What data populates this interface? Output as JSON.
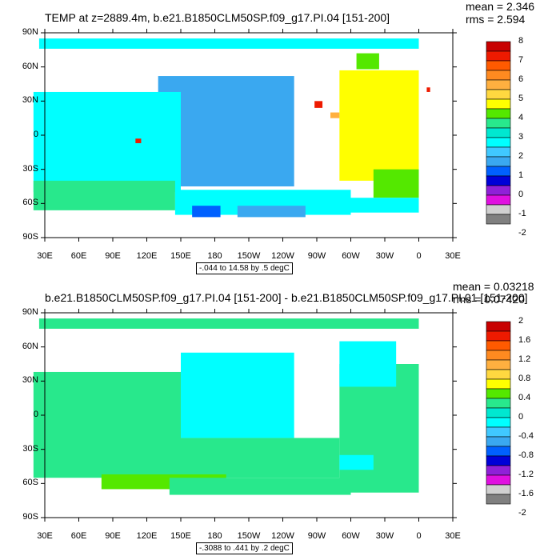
{
  "lat_labels": [
    "90N",
    "60N",
    "30N",
    "0",
    "30S",
    "60S",
    "90S"
  ],
  "lon_labels": [
    "30E",
    "60E",
    "90E",
    "120E",
    "150E",
    "180",
    "150W",
    "120W",
    "90W",
    "60W",
    "30W",
    "0",
    "30E"
  ],
  "panels": [
    {
      "title": "TEMP at z=2889.4m, b.e21.B1850CLM50SP.f09_g17.PI.04 [151-200]",
      "mean_label": "mean = 2.346",
      "rms_label": "rms = 2.594",
      "info_label": "-.044 to 14.58 by .5 degC",
      "colorbar_labels": [
        "8",
        "7",
        "6",
        "5",
        "4",
        "3",
        "2",
        "1",
        "0",
        "-1",
        "-2"
      ],
      "colorbar_colors": [
        "#c80000",
        "#ee1a00",
        "#ff5a00",
        "#ff8a20",
        "#ffb040",
        "#ffd840",
        "#ffff00",
        "#54e800",
        "#28e88c",
        "#00e8d0",
        "#00ffff",
        "#40c8ff",
        "#3aa8f0",
        "#0060ff",
        "#0000d8",
        "#9020d8",
        "#e010e0",
        "#d0d0d0",
        "#808080"
      ],
      "fields": [
        {
          "color": "#3aa8f0",
          "lon": [
            130,
            250
          ],
          "lat": [
            -45,
            52
          ]
        },
        {
          "color": "#00ffff",
          "lon": [
            20,
            150
          ],
          "lat": [
            -50,
            38
          ]
        },
        {
          "color": "#28e88c",
          "lon": [
            20,
            145
          ],
          "lat": [
            -66,
            -40
          ]
        },
        {
          "color": "#00ffff",
          "lon": [
            145,
            300
          ],
          "lat": [
            -70,
            -48
          ]
        },
        {
          "color": "#3aa8f0",
          "lon": [
            200,
            260
          ],
          "lat": [
            -72,
            -62
          ]
        },
        {
          "color": "#0060ff",
          "lon": [
            160,
            185
          ],
          "lat": [
            -72,
            -62
          ]
        },
        {
          "color": "#ffff00",
          "lon": [
            290,
            360
          ],
          "lat": [
            -40,
            57
          ]
        },
        {
          "color": "#54e800",
          "lon": [
            320,
            360
          ],
          "lat": [
            -55,
            -30
          ]
        },
        {
          "color": "#00ffff",
          "lon": [
            295,
            360
          ],
          "lat": [
            -68,
            -55
          ]
        },
        {
          "color": "#54e800",
          "lon": [
            305,
            325
          ],
          "lat": [
            58,
            72
          ]
        },
        {
          "color": "#00ffff",
          "lon": [
            25,
            360
          ],
          "lat": [
            76,
            85
          ]
        },
        {
          "color": "#ee1a00",
          "lon": [
            268,
            275
          ],
          "lat": [
            24,
            30
          ]
        },
        {
          "color": "#ffb040",
          "lon": [
            282,
            290
          ],
          "lat": [
            15,
            20
          ]
        },
        {
          "color": "#ee1a00",
          "lon": [
            110,
            115
          ],
          "lat": [
            -7,
            -3
          ]
        },
        {
          "color": "#ee1a00",
          "lon": [
            367,
            370
          ],
          "lat": [
            38,
            42
          ]
        }
      ]
    },
    {
      "title": "b.e21.B1850CLM50SP.f09_g17.PI.04 [151-200] - b.e21.B1850CLM50SP.f09_g17.PI.01 [151-200]",
      "mean_label": "mean = 0.03218",
      "rms_label": "rms = 0.07420",
      "info_label": "-.3088 to .441 by .2 degC",
      "colorbar_labels": [
        "2",
        "1.6",
        "1.2",
        "0.8",
        "0.4",
        "0",
        "-0.4",
        "-0.8",
        "-1.2",
        "-1.6",
        "-2"
      ],
      "colorbar_colors": [
        "#c80000",
        "#ee1a00",
        "#ff5a00",
        "#ff8a20",
        "#ffb040",
        "#ffd840",
        "#ffff00",
        "#54e800",
        "#28e88c",
        "#00e8d0",
        "#00ffff",
        "#40c8ff",
        "#3aa8f0",
        "#0060ff",
        "#0000d8",
        "#9020d8",
        "#e010e0",
        "#d0d0d0",
        "#808080"
      ],
      "fields": [
        {
          "color": "#28e88c",
          "lon": [
            20,
            150
          ],
          "lat": [
            -55,
            38
          ]
        },
        {
          "color": "#00ffff",
          "lon": [
            150,
            250
          ],
          "lat": [
            -20,
            55
          ]
        },
        {
          "color": "#28e88c",
          "lon": [
            150,
            290
          ],
          "lat": [
            -55,
            -20
          ]
        },
        {
          "color": "#54e800",
          "lon": [
            80,
            190
          ],
          "lat": [
            -65,
            -52
          ]
        },
        {
          "color": "#28e88c",
          "lon": [
            140,
            300
          ],
          "lat": [
            -70,
            -55
          ]
        },
        {
          "color": "#28e88c",
          "lon": [
            290,
            360
          ],
          "lat": [
            -60,
            45
          ]
        },
        {
          "color": "#00ffff",
          "lon": [
            290,
            340
          ],
          "lat": [
            25,
            65
          ]
        },
        {
          "color": "#00ffff",
          "lon": [
            290,
            320
          ],
          "lat": [
            -48,
            -35
          ]
        },
        {
          "color": "#28e88c",
          "lon": [
            295,
            360
          ],
          "lat": [
            -68,
            -58
          ]
        },
        {
          "color": "#28e88c",
          "lon": [
            25,
            360
          ],
          "lat": [
            76,
            85
          ]
        }
      ]
    }
  ]
}
